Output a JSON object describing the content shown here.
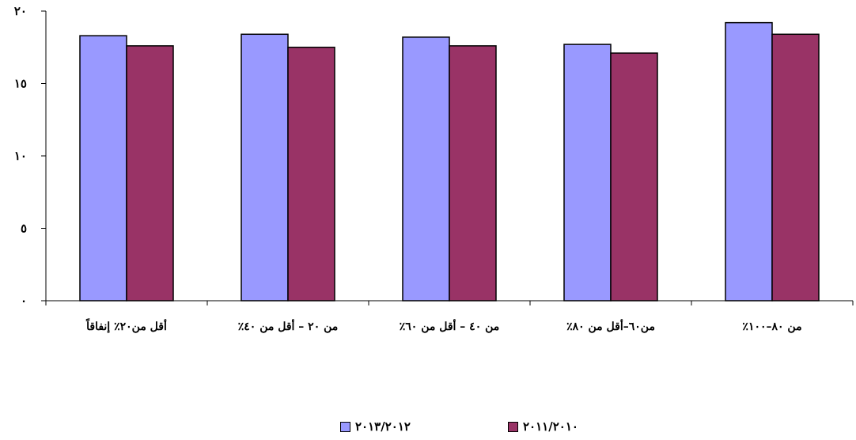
{
  "chart_data": {
    "type": "bar",
    "categories": [
      "أقل من٢٠٪ إنفاقاً",
      "من ٢٠ – أقل من ٤٠٪",
      "من ٤٠ – أقل من ٦٠٪",
      "من٦٠–أقل من ٨٠٪",
      "من ٨٠–١٠٠٪"
    ],
    "y_tick_labels": [
      "٠",
      "٥",
      "١٠",
      "١٥",
      "٢٠"
    ],
    "y_ticks": [
      0,
      5,
      10,
      15,
      20
    ],
    "ylim": [
      0,
      20
    ],
    "series": [
      {
        "name": "٢٠١٣/٢٠١٢",
        "color": "#9999FF",
        "values": [
          18.3,
          18.4,
          18.2,
          17.7,
          19.2
        ]
      },
      {
        "name": "٢٠١١/٢٠١٠",
        "color": "#993366",
        "values": [
          17.6,
          17.5,
          17.6,
          17.1,
          18.4
        ]
      }
    ],
    "legend_position": "bottom",
    "grid": false
  }
}
